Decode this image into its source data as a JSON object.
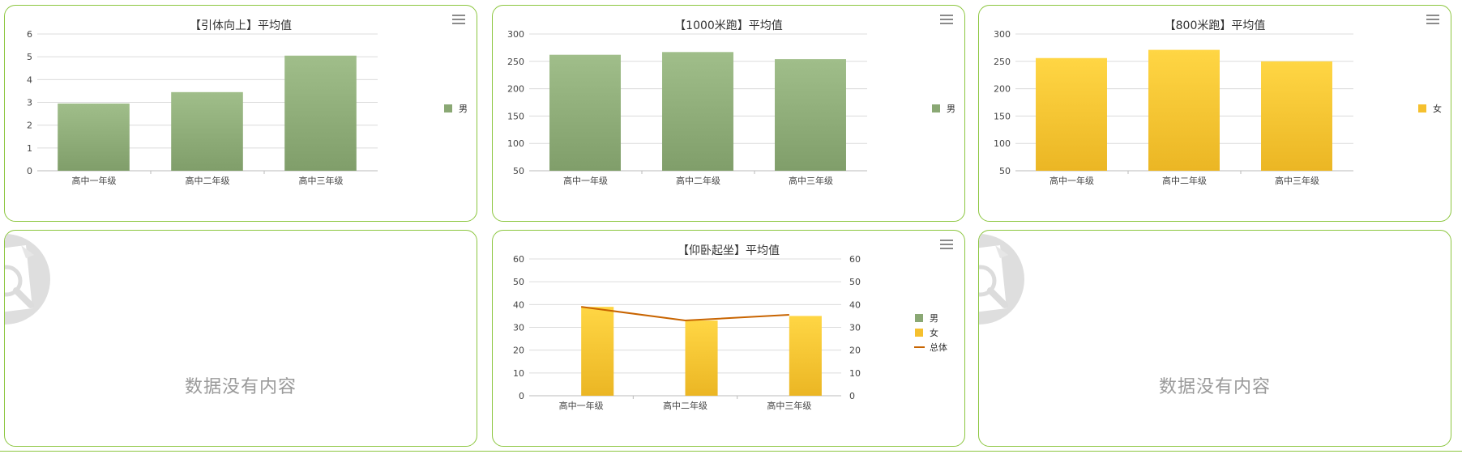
{
  "colors": {
    "border": "#8cc63f",
    "male": "#8aa874",
    "female": "#f5c02e",
    "total": "#c86400"
  },
  "empty_text": "数据没有内容",
  "chart_data": [
    {
      "id": "c1",
      "type": "bar",
      "title": "【引体向上】平均值",
      "categories": [
        "高中一年级",
        "高中二年级",
        "高中三年级"
      ],
      "series": [
        {
          "name": "男",
          "color": "male",
          "values": [
            2.95,
            3.45,
            5.05
          ]
        }
      ],
      "ylim": [
        0,
        6
      ],
      "yticks": [
        0,
        1,
        2,
        3,
        4,
        5,
        6
      ],
      "legend": "right",
      "grid": true
    },
    {
      "id": "c2",
      "type": "bar",
      "title": "【1000米跑】平均值",
      "categories": [
        "高中一年级",
        "高中二年级",
        "高中三年级"
      ],
      "series": [
        {
          "name": "男",
          "color": "male",
          "values": [
            262,
            267,
            254
          ]
        }
      ],
      "ylim": [
        50,
        300
      ],
      "yticks": [
        50,
        100,
        150,
        200,
        250,
        300
      ],
      "legend": "right",
      "grid": true
    },
    {
      "id": "c3",
      "type": "bar",
      "title": "【800米跑】平均值",
      "categories": [
        "高中一年级",
        "高中二年级",
        "高中三年级"
      ],
      "series": [
        {
          "name": "女",
          "color": "female",
          "values": [
            256,
            271,
            250
          ]
        }
      ],
      "ylim": [
        50,
        300
      ],
      "yticks": [
        50,
        100,
        150,
        200,
        250,
        300
      ],
      "legend": "right",
      "grid": true
    },
    {
      "id": "c5",
      "type": "bar",
      "title": "【仰卧起坐】平均值",
      "categories": [
        "高中一年级",
        "高中二年级",
        "高中三年级"
      ],
      "series": [
        {
          "name": "男",
          "color": "male",
          "values": [
            0,
            0,
            0
          ]
        },
        {
          "name": "女",
          "color": "female",
          "values": [
            39,
            33,
            35
          ]
        },
        {
          "name": "总体",
          "color": "total",
          "kind": "line",
          "values": [
            39,
            33,
            35.5
          ]
        }
      ],
      "ylim": [
        0,
        60
      ],
      "yticks": [
        0,
        10,
        20,
        30,
        40,
        50,
        60
      ],
      "y2ticks": [
        0,
        10,
        20,
        30,
        40,
        50,
        60
      ],
      "legend": "right",
      "grid": true
    }
  ]
}
